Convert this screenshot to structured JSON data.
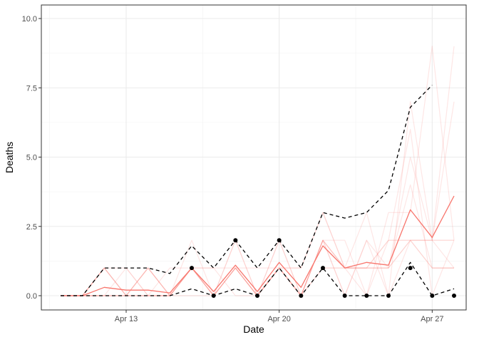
{
  "chart_data": {
    "type": "line",
    "xlabel": "Date",
    "ylabel": "Deaths",
    "x_dates": [
      "Apr 10",
      "Apr 11",
      "Apr 12",
      "Apr 13",
      "Apr 14",
      "Apr 15",
      "Apr 16",
      "Apr 17",
      "Apr 18",
      "Apr 19",
      "Apr 20",
      "Apr 21",
      "Apr 22",
      "Apr 23",
      "Apr 24",
      "Apr 25",
      "Apr 26",
      "Apr 27",
      "Apr 28"
    ],
    "x_ticks": [
      {
        "label": "Apr 13",
        "index": 3
      },
      {
        "label": "Apr 20",
        "index": 10
      },
      {
        "label": "Apr 27",
        "index": 17
      }
    ],
    "ylim": [
      0,
      10
    ],
    "y_ticks": [
      {
        "value": 0,
        "label": "0.0"
      },
      {
        "value": 2.5,
        "label": "2.5"
      },
      {
        "value": 5,
        "label": "5.0"
      },
      {
        "value": 7.5,
        "label": "7.5"
      },
      {
        "value": 10,
        "label": "10.0"
      }
    ],
    "grid": true,
    "colors": {
      "mean": "#f8766d",
      "sample": "#f8766d",
      "bounds": "#000000",
      "observed": "#000000"
    },
    "series": [
      {
        "role": "sample",
        "style": "faint",
        "values": [
          0,
          0,
          1,
          0,
          1,
          0,
          1,
          0,
          2,
          0,
          2,
          0,
          2,
          1,
          3,
          0,
          7,
          2,
          9
        ]
      },
      {
        "role": "sample",
        "style": "faint",
        "values": [
          0,
          0,
          0,
          1,
          0,
          0,
          2,
          0,
          1,
          1,
          1,
          0,
          2,
          0,
          2,
          1,
          5,
          2,
          7
        ]
      },
      {
        "role": "sample",
        "style": "faint",
        "values": [
          0,
          0,
          0,
          0,
          1,
          0,
          1,
          1,
          1,
          0,
          1,
          1,
          3,
          1,
          1,
          1,
          4,
          1,
          1
        ]
      },
      {
        "role": "sample",
        "style": "faint",
        "values": [
          0,
          0,
          1,
          0,
          0,
          0,
          1,
          0,
          1,
          0,
          2,
          0,
          2,
          2,
          0,
          2,
          6,
          0,
          2
        ]
      },
      {
        "role": "sample",
        "style": "faint",
        "values": [
          0,
          0,
          0,
          0,
          0,
          1,
          1,
          1,
          0,
          0,
          1,
          1,
          3,
          1,
          0,
          3,
          3,
          9,
          2
        ]
      },
      {
        "role": "sample",
        "style": "faint",
        "values": [
          0,
          0,
          1,
          1,
          0,
          0,
          0,
          0,
          2,
          0,
          1,
          0,
          2,
          0,
          2,
          0,
          2,
          2,
          1
        ]
      },
      {
        "role": "sample",
        "style": "medium",
        "values": [
          0,
          0,
          1,
          0,
          1,
          0,
          1,
          0,
          1,
          0,
          1,
          0,
          2,
          1,
          1,
          2,
          2,
          2,
          2
        ]
      },
      {
        "role": "sample",
        "style": "medium",
        "values": [
          0,
          0,
          0,
          0,
          0,
          0,
          1,
          0,
          1,
          0,
          1,
          0,
          1,
          1,
          1,
          1,
          2,
          1,
          1
        ]
      },
      {
        "role": "mean",
        "values": [
          0,
          0,
          0.3,
          0.2,
          0.2,
          0.1,
          1.0,
          0.15,
          1.1,
          0.15,
          1.2,
          0.3,
          1.8,
          1.0,
          1.2,
          1.1,
          3.1,
          2.1,
          3.6
        ]
      },
      {
        "role": "upper",
        "values": [
          0,
          0,
          1,
          1,
          1,
          0.8,
          1.8,
          1,
          2,
          1,
          2,
          1,
          3,
          2.8,
          3,
          3.8,
          6.8,
          7.6,
          null
        ]
      },
      {
        "role": "lower",
        "values": [
          0,
          0,
          0,
          0,
          0,
          0,
          0.25,
          0,
          0.25,
          0,
          1,
          0,
          1,
          0,
          0,
          0,
          1.2,
          0,
          0.25
        ]
      },
      {
        "role": "observed",
        "values": [
          null,
          null,
          null,
          null,
          null,
          null,
          1,
          0,
          2,
          0,
          2,
          0,
          1,
          0,
          0,
          0,
          1,
          0,
          0
        ]
      }
    ]
  }
}
